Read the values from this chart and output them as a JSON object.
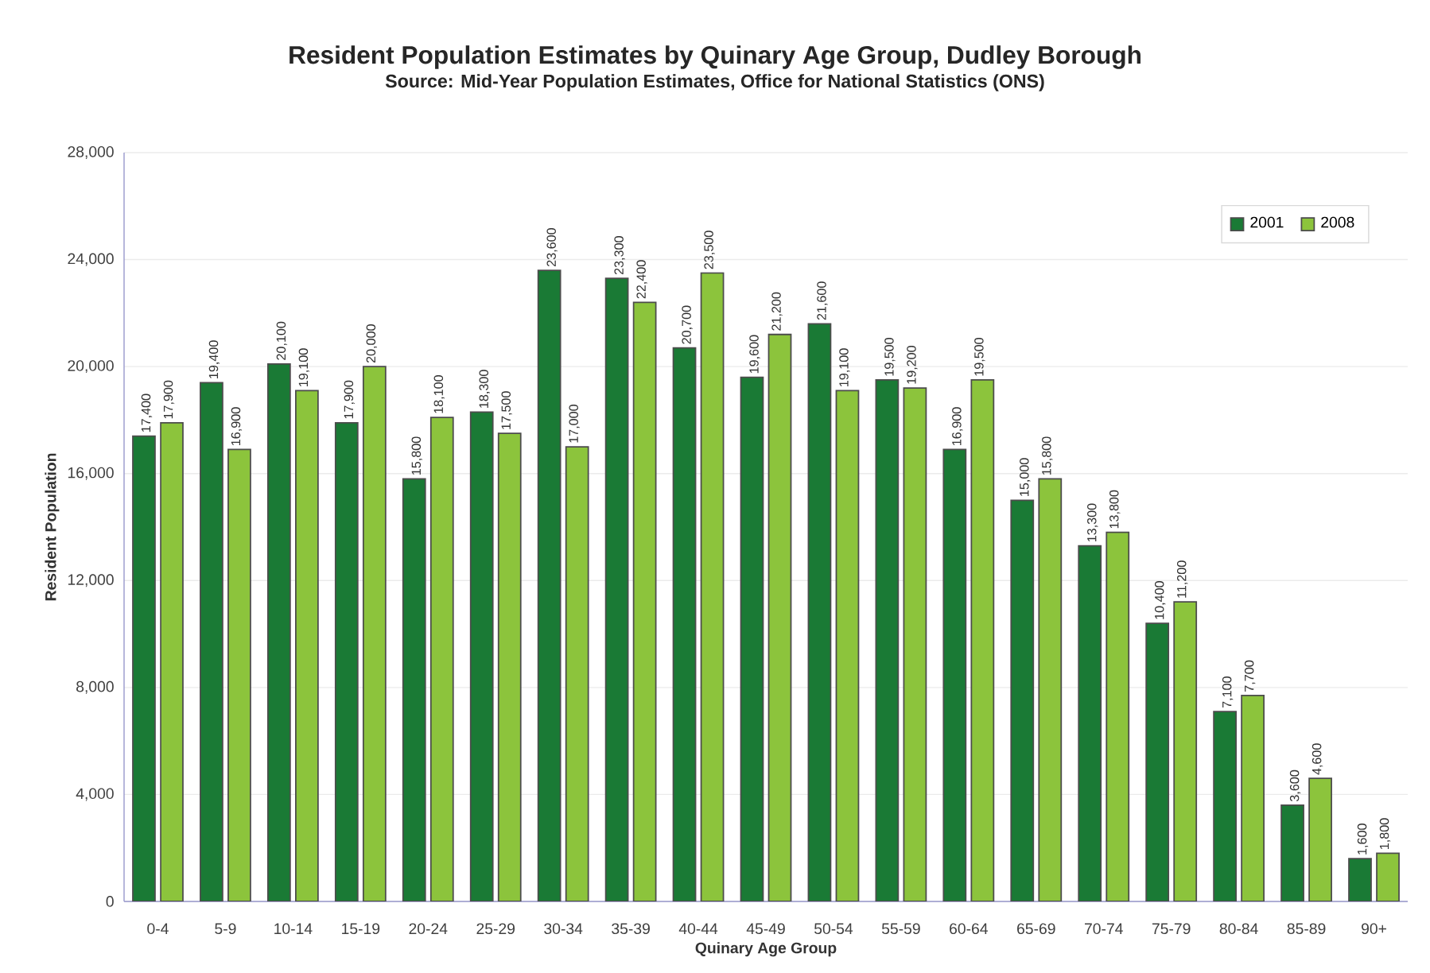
{
  "chart_data": {
    "type": "bar",
    "title": "Resident Population Estimates by Quinary Age Group, Dudley Borough",
    "subtitle": "Source: Mid-Year Population Estimates, Office for National Statistics (ONS)",
    "xlabel": "Quinary Age Group",
    "ylabel": "Resident Population",
    "categories": [
      "0-4",
      "5-9",
      "10-14",
      "15-19",
      "20-24",
      "25-29",
      "30-34",
      "35-39",
      "40-44",
      "45-49",
      "50-54",
      "55-59",
      "60-64",
      "65-69",
      "70-74",
      "75-79",
      "80-84",
      "85-89",
      "90+"
    ],
    "series": [
      {
        "name": "2001",
        "color": "#1a7a35",
        "values": [
          17400,
          19400,
          20100,
          17900,
          15800,
          18300,
          23600,
          23300,
          20700,
          19600,
          21600,
          19500,
          16900,
          15000,
          13300,
          10400,
          7100,
          3600,
          1600
        ],
        "value_labels": [
          "17,400",
          "19,400",
          "20,100",
          "17,900",
          "15,800",
          "18,300",
          "23,600",
          "23,300",
          "20,700",
          "19,600",
          "21,600",
          "19,500",
          "16,900",
          "15,000",
          "13,300",
          "10,400",
          "7,100",
          "3,600",
          "1,600"
        ]
      },
      {
        "name": "2008",
        "color": "#8cc43c",
        "values": [
          17900,
          16900,
          19100,
          20000,
          18100,
          17500,
          17000,
          22400,
          23500,
          21200,
          19100,
          19200,
          19500,
          15800,
          13800,
          11200,
          7700,
          4600,
          1800
        ],
        "value_labels": [
          "17,900",
          "16,900",
          "19,100",
          "20,000",
          "18,100",
          "17,500",
          "17,000",
          "22,400",
          "23,500",
          "21,200",
          "19,100",
          "19,200",
          "19,500",
          "15,800",
          "13,800",
          "11,200",
          "7,700",
          "4,600",
          "1,800"
        ]
      }
    ],
    "ylim": [
      0,
      28000
    ],
    "yticks": [
      {
        "value": 0,
        "label": "0"
      },
      {
        "value": 4000,
        "label": "4,000"
      },
      {
        "value": 8000,
        "label": "8,000"
      },
      {
        "value": 12000,
        "label": "12,000"
      },
      {
        "value": 16000,
        "label": "16,000"
      },
      {
        "value": 20000,
        "label": "20,000"
      },
      {
        "value": 24000,
        "label": "24,000"
      },
      {
        "value": 28000,
        "label": "28,000"
      }
    ],
    "grid": "y",
    "legend": "top right"
  }
}
